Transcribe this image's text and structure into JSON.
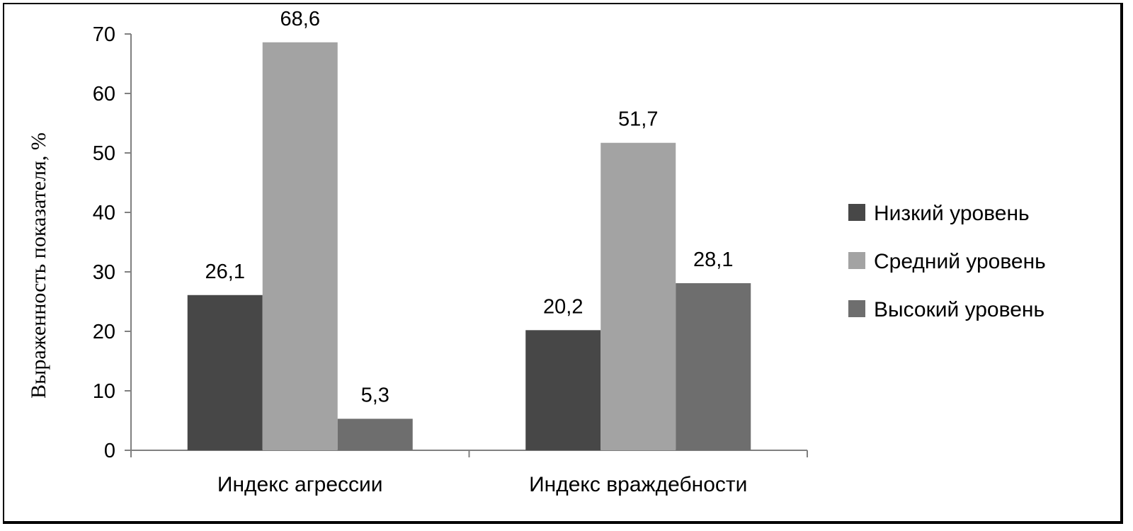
{
  "chart_data": {
    "type": "bar",
    "categories": [
      "Индекс агрессии",
      "Индекс враждебности"
    ],
    "series": [
      {
        "name": "Низкий уровень",
        "values": [
          26.1,
          20.2
        ],
        "labels": [
          "26,1",
          "20,2"
        ],
        "color": "#474747"
      },
      {
        "name": "Средний уровень",
        "values": [
          68.6,
          51.7
        ],
        "labels": [
          "68,6",
          "51,7"
        ],
        "color": "#a3a3a3"
      },
      {
        "name": "Высокий уровень",
        "values": [
          5.3,
          28.1
        ],
        "labels": [
          "5,3",
          "28,1"
        ],
        "color": "#6e6e6e"
      }
    ],
    "ylabel": "Выраженность показателя, %",
    "xlabel": "",
    "ylim": [
      0,
      70
    ],
    "yticks": [
      0,
      10,
      20,
      30,
      40,
      50,
      60,
      70
    ],
    "grid": false,
    "legend_position": "right"
  }
}
